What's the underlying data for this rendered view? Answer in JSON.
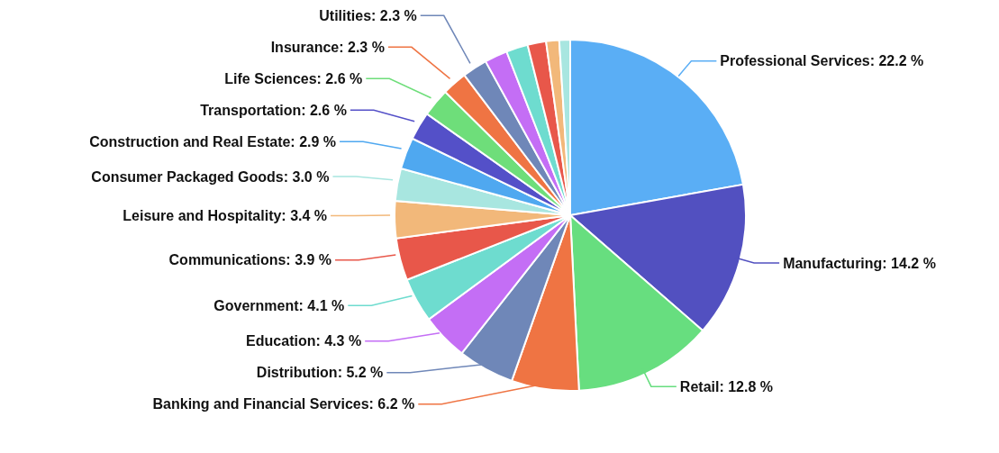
{
  "chart_data": {
    "type": "pie",
    "categories": [
      "Professional Services",
      "Manufacturing",
      "Retail",
      "Banking and Financial Services",
      "Distribution",
      "Education",
      "Government",
      "Communications",
      "Leisure and Hospitality",
      "Consumer Packaged Goods",
      "Construction and Real Estate",
      "Transportation",
      "Life Sciences",
      "Insurance",
      "Utilities",
      null,
      null,
      null,
      null,
      null
    ],
    "values": [
      22.2,
      14.2,
      12.8,
      6.2,
      5.2,
      4.3,
      4.1,
      3.9,
      3.4,
      3.0,
      2.9,
      2.6,
      2.6,
      2.3,
      2.3,
      2.1,
      2.0,
      1.7,
      1.2,
      1.0
    ],
    "value_labels": [
      "22.2 %",
      "14.2 %",
      "12.8 %",
      "6.2 %",
      "5.2 %",
      "4.3 %",
      "4.1 %",
      "3.9 %",
      "3.4 %",
      "3.0 %",
      "2.9 %",
      "2.6 %",
      "2.6 %",
      "2.3 %",
      "2.3 %",
      null,
      null,
      null,
      null,
      null
    ],
    "colors": [
      "#5aaef5",
      "#5250c0",
      "#67de7f",
      "#ef7443",
      "#6f87b8",
      "#c46ef5",
      "#6edccf",
      "#e8574a",
      "#f2b87a",
      "#a8e6e0",
      "#4fa8f0",
      "#5450c8",
      "#6ede7a",
      "#ef7443",
      "#6f87b8",
      "#c46ef5",
      "#6edccf",
      "#e8574a",
      "#f2b87a",
      "#a8e6e0"
    ],
    "legend": false
  }
}
